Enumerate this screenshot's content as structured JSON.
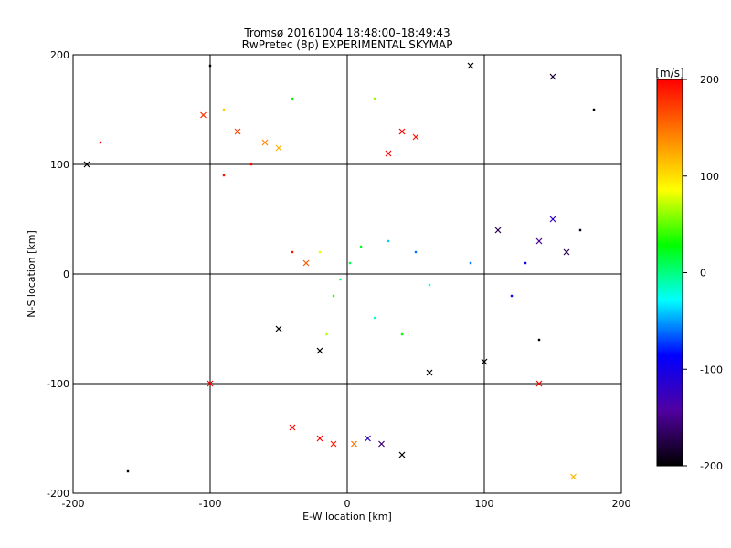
{
  "title": "Tromsø 20161004 18:48:00–18:49:43",
  "subtitle": "RwPretec (8p) EXPERIMENTAL SKYMAP",
  "colorbar_label": "[m/s]",
  "colorbar_ticks": [
    "200",
    "100",
    "0",
    "-100",
    "-200"
  ],
  "colorbar_colors": [
    "#ff0000",
    "#ff8000",
    "#ffff00",
    "#00ff00",
    "#00ffff",
    "#0000ff",
    "#5000a0",
    "#000000"
  ],
  "chart_data": {
    "type": "scatter",
    "title": "Tromsø 20161004 18:48:00–18:49:43",
    "subtitle": "RwPretec (8p) EXPERIMENTAL SKYMAP",
    "xlabel": "E-W location [km]",
    "ylabel": "N-S location [km]",
    "xlim": [
      -200,
      200
    ],
    "ylim": [
      -200,
      200
    ],
    "x_ticks": [
      "-200",
      "-100",
      "0",
      "100",
      "200"
    ],
    "y_ticks": [
      "200",
      "100",
      "0",
      "-100",
      "-200"
    ],
    "grid": true,
    "color_scale": {
      "label": "[m/s]",
      "min": -200,
      "max": 200
    },
    "marker_types": [
      "x",
      "dot"
    ],
    "points": [
      {
        "x": -5,
        "y": -5,
        "v": 5,
        "m": "dot"
      },
      {
        "x": 2,
        "y": 10,
        "v": 10,
        "m": "dot"
      },
      {
        "x": 10,
        "y": 25,
        "v": 20,
        "m": "dot"
      },
      {
        "x": -10,
        "y": -20,
        "v": 40,
        "m": "dot"
      },
      {
        "x": 20,
        "y": -40,
        "v": -20,
        "m": "dot"
      },
      {
        "x": 30,
        "y": 30,
        "v": -40,
        "m": "dot"
      },
      {
        "x": 50,
        "y": 20,
        "v": -60,
        "m": "dot"
      },
      {
        "x": -20,
        "y": 20,
        "v": 80,
        "m": "dot"
      },
      {
        "x": 40,
        "y": -55,
        "v": 30,
        "m": "dot"
      },
      {
        "x": -15,
        "y": -55,
        "v": 70,
        "m": "dot"
      },
      {
        "x": -30,
        "y": 10,
        "v": 160,
        "m": "x"
      },
      {
        "x": -40,
        "y": 20,
        "v": 190,
        "m": "dot"
      },
      {
        "x": -80,
        "y": 130,
        "v": 170,
        "m": "x"
      },
      {
        "x": -105,
        "y": 145,
        "v": 180,
        "m": "x"
      },
      {
        "x": -90,
        "y": 150,
        "v": 110,
        "m": "dot"
      },
      {
        "x": -60,
        "y": 120,
        "v": 140,
        "m": "x"
      },
      {
        "x": -50,
        "y": 115,
        "v": 120,
        "m": "x"
      },
      {
        "x": -70,
        "y": 100,
        "v": 200,
        "m": "dot"
      },
      {
        "x": -90,
        "y": 90,
        "v": 195,
        "m": "dot"
      },
      {
        "x": -40,
        "y": 160,
        "v": 30,
        "m": "dot"
      },
      {
        "x": 40,
        "y": 130,
        "v": 200,
        "m": "x"
      },
      {
        "x": 30,
        "y": 110,
        "v": 200,
        "m": "x"
      },
      {
        "x": 50,
        "y": 125,
        "v": 190,
        "m": "x"
      },
      {
        "x": 20,
        "y": 160,
        "v": 60,
        "m": "dot"
      },
      {
        "x": 110,
        "y": 40,
        "v": -170,
        "m": "x"
      },
      {
        "x": 140,
        "y": 30,
        "v": -150,
        "m": "x"
      },
      {
        "x": 150,
        "y": 50,
        "v": -120,
        "m": "x"
      },
      {
        "x": 160,
        "y": 20,
        "v": -170,
        "m": "x"
      },
      {
        "x": 130,
        "y": 10,
        "v": -100,
        "m": "dot"
      },
      {
        "x": 170,
        "y": 40,
        "v": -190,
        "m": "dot"
      },
      {
        "x": 120,
        "y": -20,
        "v": -90,
        "m": "dot"
      },
      {
        "x": 90,
        "y": 10,
        "v": -60,
        "m": "dot"
      },
      {
        "x": 60,
        "y": -10,
        "v": -20,
        "m": "dot"
      },
      {
        "x": 100,
        "y": -80,
        "v": -200,
        "m": "x"
      },
      {
        "x": 140,
        "y": -60,
        "v": -200,
        "m": "dot"
      },
      {
        "x": 60,
        "y": -90,
        "v": -200,
        "m": "x"
      },
      {
        "x": -20,
        "y": -70,
        "v": -200,
        "m": "x"
      },
      {
        "x": -50,
        "y": -50,
        "v": -200,
        "m": "x"
      },
      {
        "x": -20,
        "y": -150,
        "v": 200,
        "m": "x"
      },
      {
        "x": -10,
        "y": -155,
        "v": 190,
        "m": "x"
      },
      {
        "x": 5,
        "y": -155,
        "v": 150,
        "m": "x"
      },
      {
        "x": 15,
        "y": -150,
        "v": -120,
        "m": "x"
      },
      {
        "x": 25,
        "y": -155,
        "v": -160,
        "m": "x"
      },
      {
        "x": 40,
        "y": -165,
        "v": -200,
        "m": "x"
      },
      {
        "x": -40,
        "y": -140,
        "v": 200,
        "m": "x"
      },
      {
        "x": -100,
        "y": 190,
        "v": -200,
        "m": "dot"
      },
      {
        "x": 90,
        "y": 190,
        "v": -200,
        "m": "x"
      },
      {
        "x": 150,
        "y": 180,
        "v": -180,
        "m": "x"
      },
      {
        "x": 180,
        "y": 150,
        "v": -200,
        "m": "dot"
      },
      {
        "x": -180,
        "y": 120,
        "v": 200,
        "m": "dot"
      },
      {
        "x": -160,
        "y": -180,
        "v": -200,
        "m": "dot"
      },
      {
        "x": -190,
        "y": 100,
        "v": -200,
        "m": "x"
      },
      {
        "x": 165,
        "y": -185,
        "v": 120,
        "m": "x"
      },
      {
        "x": 140,
        "y": -100,
        "v": 200,
        "m": "x"
      },
      {
        "x": -100,
        "y": -100,
        "v": 200,
        "m": "x"
      }
    ]
  }
}
